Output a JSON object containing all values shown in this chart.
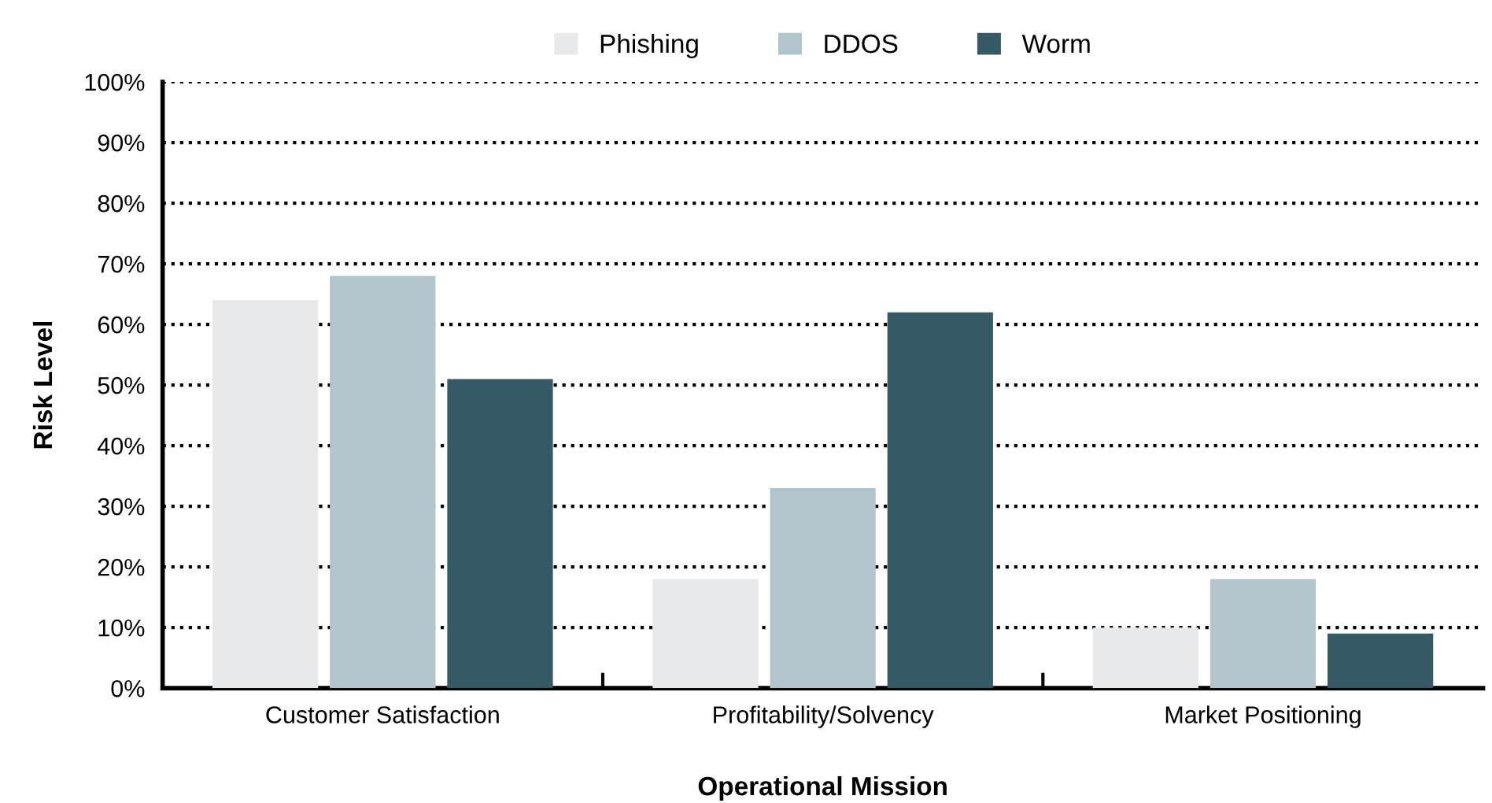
{
  "chart_data": {
    "type": "bar",
    "xlabel": "Operational Mission",
    "ylabel": "Risk Level",
    "categories": [
      "Customer Satisfaction",
      "Profitability/Solvency",
      "Market Positioning"
    ],
    "series": [
      {
        "name": "Phishing",
        "color": "#e8e9ea",
        "values": [
          64,
          18,
          10
        ]
      },
      {
        "name": "DDOS",
        "color": "#b2c5cd",
        "values": [
          68,
          33,
          18
        ]
      },
      {
        "name": "Worm",
        "color": "#355a66",
        "values": [
          51,
          62,
          9
        ]
      }
    ],
    "ylim": [
      0,
      100
    ],
    "yticks": [
      {
        "value": 0,
        "label": "0%"
      },
      {
        "value": 10,
        "label": "10%"
      },
      {
        "value": 20,
        "label": "20%"
      },
      {
        "value": 30,
        "label": "30%"
      },
      {
        "value": 40,
        "label": "40%"
      },
      {
        "value": 50,
        "label": "50%"
      },
      {
        "value": 60,
        "label": "60%"
      },
      {
        "value": 70,
        "label": "70%"
      },
      {
        "value": 80,
        "label": "80%"
      },
      {
        "value": 90,
        "label": "90%"
      },
      {
        "value": 100,
        "label": "100%"
      }
    ],
    "grid": "y",
    "legend": "top",
    "line_style": "dotted"
  }
}
